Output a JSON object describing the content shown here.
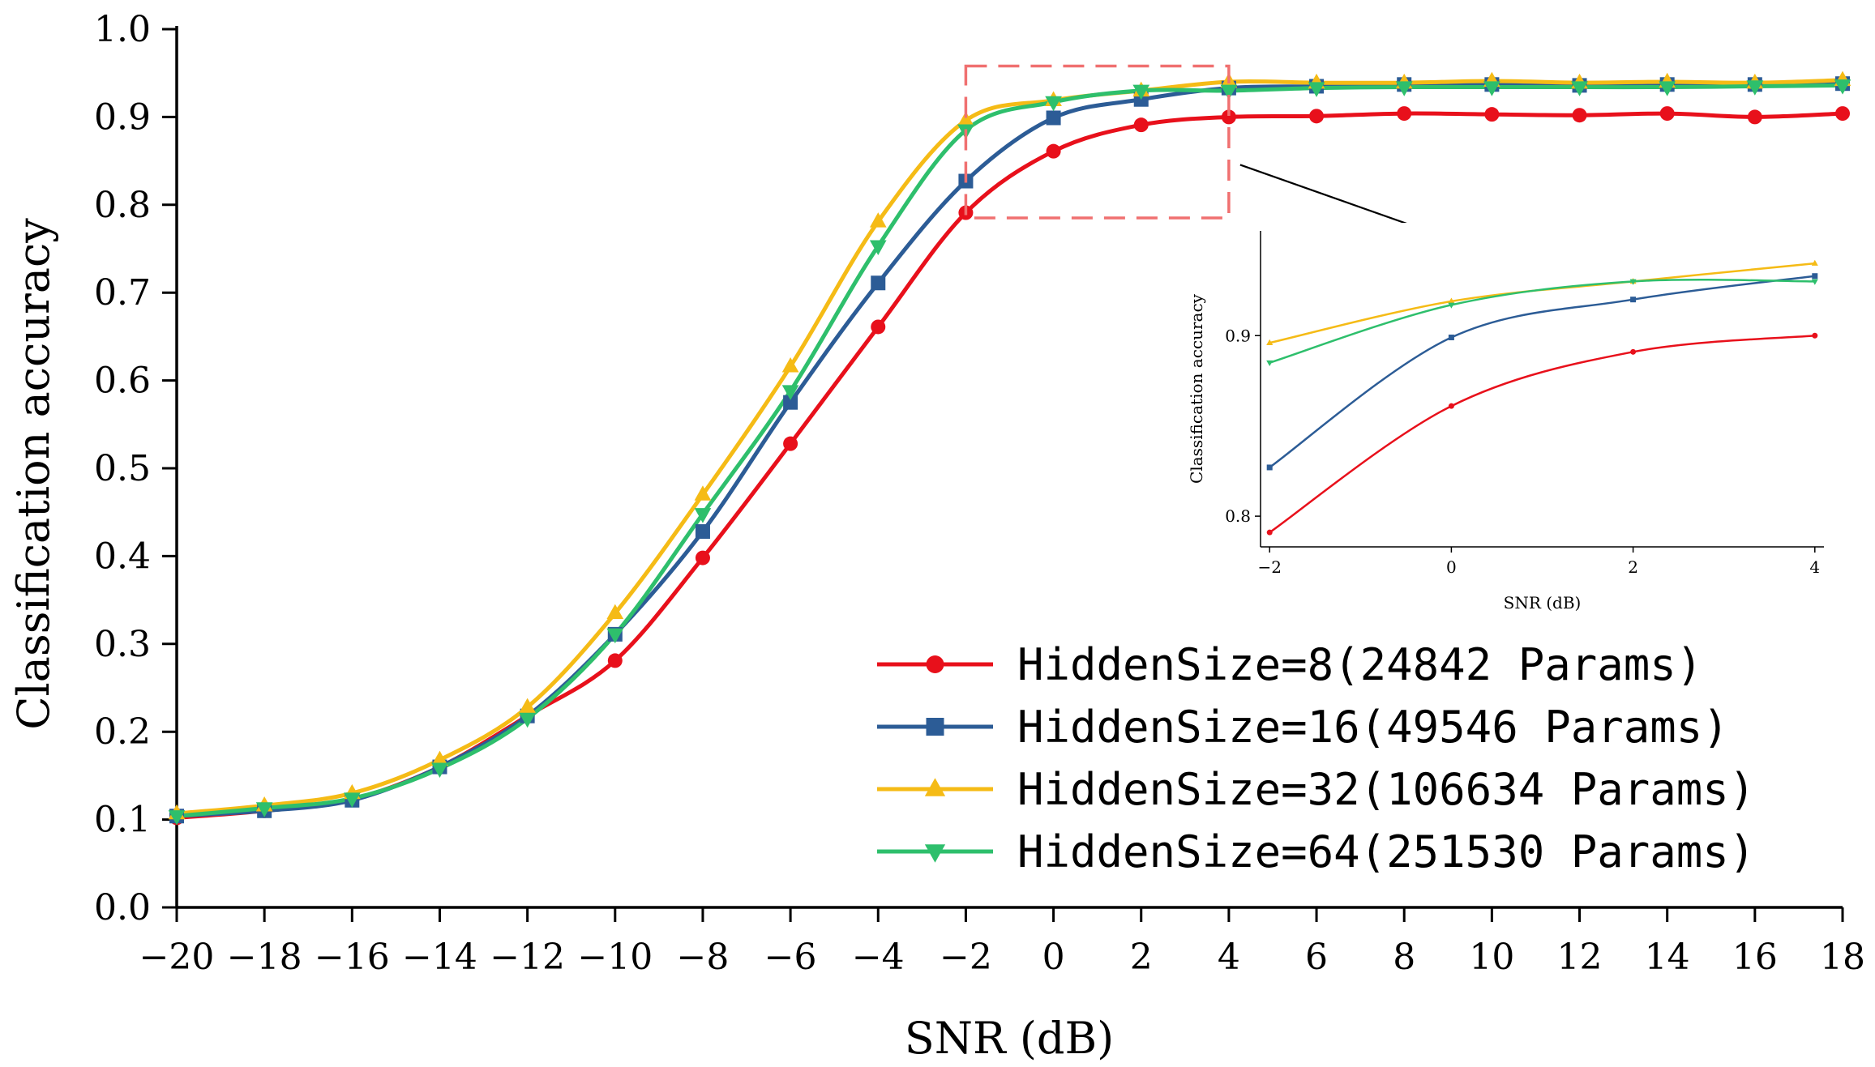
{
  "chart_data": {
    "type": "line",
    "xlabel": "SNR (dB)",
    "ylabel": "Classification accuracy",
    "xlim": [
      -20,
      18
    ],
    "ylim": [
      0.0,
      1.0
    ],
    "x_ticks": [
      -20,
      -18,
      -16,
      -14,
      -12,
      -10,
      -8,
      -6,
      -4,
      -2,
      0,
      2,
      4,
      6,
      8,
      10,
      12,
      14,
      16,
      18
    ],
    "x_tick_labels": [
      "-20",
      "-18",
      "-16",
      "-14",
      "-12",
      "-10",
      "-8",
      "-6",
      "-4",
      "-2",
      "0",
      "2",
      "4",
      "6",
      "8",
      "10",
      "12",
      "14",
      "16",
      "18"
    ],
    "y_ticks": [
      0.0,
      0.1,
      0.2,
      0.3,
      0.4,
      0.5,
      0.6,
      0.7,
      0.8,
      0.9,
      1.0
    ],
    "y_tick_labels": [
      "0.0",
      "0.1",
      "0.2",
      "0.3",
      "0.4",
      "0.5",
      "0.6",
      "0.7",
      "0.8",
      "0.9",
      "1.0"
    ],
    "x": [
      -20,
      -18,
      -16,
      -14,
      -12,
      -10,
      -8,
      -6,
      -4,
      -2,
      0,
      2,
      4,
      6,
      8,
      10,
      12,
      14,
      16,
      18
    ],
    "series": [
      {
        "name": "HiddenSize=8(24842 Params)",
        "color": "#e8101b",
        "marker": "circle",
        "values": [
          0.102,
          0.11,
          0.123,
          0.16,
          0.218,
          0.281,
          0.398,
          0.528,
          0.661,
          0.791,
          0.861,
          0.891,
          0.9,
          0.901,
          0.904,
          0.903,
          0.902,
          0.904,
          0.9,
          0.904
        ]
      },
      {
        "name": "HiddenSize=16(49546 Params)",
        "color": "#2c5c96",
        "marker": "square",
        "values": [
          0.104,
          0.11,
          0.122,
          0.16,
          0.218,
          0.311,
          0.428,
          0.575,
          0.711,
          0.827,
          0.899,
          0.92,
          0.933,
          0.935,
          0.937,
          0.937,
          0.936,
          0.937,
          0.937,
          0.938
        ]
      },
      {
        "name": "HiddenSize=32(106634 Params)",
        "color": "#f5bb16",
        "marker": "triangle-up",
        "values": [
          0.107,
          0.116,
          0.13,
          0.168,
          0.228,
          0.335,
          0.47,
          0.616,
          0.781,
          0.896,
          0.919,
          0.93,
          0.94,
          0.939,
          0.939,
          0.941,
          0.939,
          0.94,
          0.939,
          0.942
        ]
      },
      {
        "name": "HiddenSize=64(251530 Params)",
        "color": "#2ebf6c",
        "marker": "triangle-down",
        "values": [
          0.104,
          0.113,
          0.124,
          0.158,
          0.215,
          0.311,
          0.448,
          0.588,
          0.753,
          0.885,
          0.917,
          0.93,
          0.93,
          0.933,
          0.934,
          0.934,
          0.934,
          0.934,
          0.935,
          0.936
        ]
      }
    ],
    "highlight_box": {
      "x_range": [
        -2,
        4
      ],
      "y_range": [
        0.785,
        0.958
      ],
      "color": "#f07070"
    },
    "inset": {
      "xlabel": "SNR (dB)",
      "ylabel": "Classification accuracy",
      "xlim": [
        -2.1,
        4.1
      ],
      "ylim": [
        0.783,
        0.958
      ],
      "x_ticks": [
        -2,
        0,
        2,
        4
      ],
      "x_tick_labels": [
        "-2",
        "0",
        "2",
        "4"
      ],
      "y_ticks": [
        0.8,
        0.9
      ],
      "y_tick_labels": [
        "0.8",
        "0.9"
      ],
      "x": [
        -2,
        0,
        2,
        4
      ]
    },
    "legend": {
      "placement": "bottom-right"
    }
  }
}
